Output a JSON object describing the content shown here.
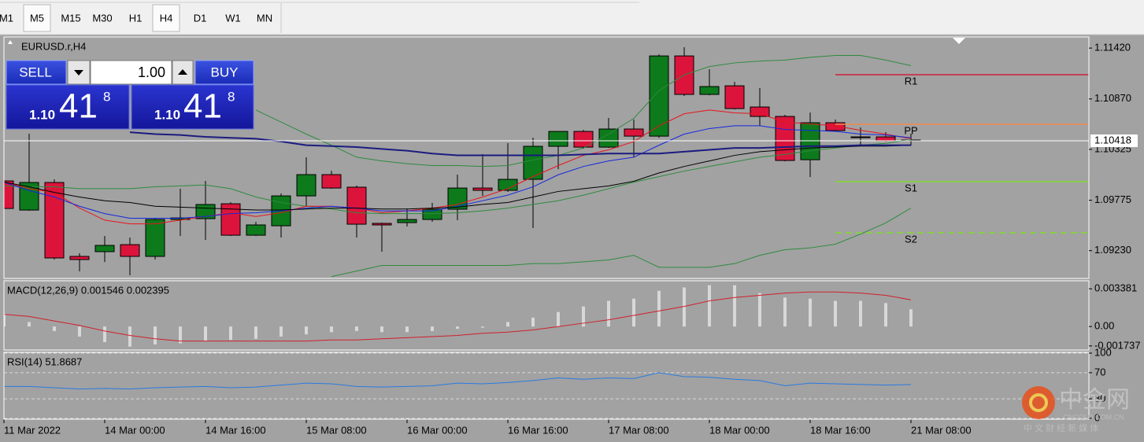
{
  "toolbar": {
    "timeframes": [
      "M1",
      "M5",
      "M15",
      "M30",
      "H1",
      "H4",
      "D1",
      "W1",
      "MN"
    ],
    "boxed": [
      1,
      5
    ]
  },
  "trade_panel": {
    "sell_label": "SELL",
    "lots": "1.00",
    "buy_label": "BUY",
    "sell_price": {
      "big": "1.10",
      "pips": "41",
      "point": "8"
    },
    "buy_price": {
      "big": "1.10",
      "pips": "41",
      "point": "8"
    }
  },
  "chart_data": [
    {
      "type": "candlestick",
      "title": "EURUSD.r,H4",
      "categories": [
        "11 Mar 2022",
        null,
        null,
        null,
        "14 Mar 00:00",
        null,
        null,
        null,
        "14 Mar 16:00",
        null,
        null,
        null,
        "15 Mar 08:00",
        null,
        null,
        null,
        "16 Mar 00:00",
        null,
        null,
        null,
        "16 Mar 16:00",
        null,
        null,
        null,
        "17 Mar 08:00",
        null,
        null,
        null,
        "18 Mar 00:00",
        null,
        null,
        null,
        "18 Mar 16:00",
        null,
        null,
        null,
        "21 Mar 08:00"
      ],
      "open": [
        1.09984,
        1.09669,
        1.09967,
        1.09168,
        1.09219,
        1.09295,
        1.09168,
        1.09567,
        1.09576,
        1.09737,
        1.09397,
        1.09499,
        1.09822,
        1.10052,
        1.09916,
        1.09525,
        1.09533,
        1.09567,
        1.09678,
        1.09907,
        1.09882,
        1.10001,
        1.10358,
        1.10519,
        1.10349,
        1.10545,
        1.10468,
        1.11335,
        1.10919,
        1.11012,
        1.10783,
        1.10681,
        1.10213,
        1.10613,
        1.1046,
        1.1046,
        1.10426
      ],
      "high": [
        1.10111,
        1.10494,
        1.10001,
        1.09202,
        1.09389,
        1.09372,
        1.09584,
        1.09899,
        1.09984,
        1.09754,
        1.09542,
        1.09848,
        1.10239,
        1.10094,
        1.09933,
        1.09533,
        1.09686,
        1.09746,
        1.10052,
        1.10273,
        1.10392,
        1.10451,
        1.10519,
        1.10536,
        1.10664,
        1.10647,
        1.11352,
        1.11429,
        1.11191,
        1.11055,
        1.10987,
        1.10698,
        1.10723,
        1.10647,
        1.10562,
        1.10511,
        1.10494
      ],
      "low": [
        1.09644,
        1.09661,
        1.09134,
        1.09006,
        1.09108,
        1.08964,
        1.09134,
        1.09389,
        1.09346,
        1.09389,
        1.09389,
        1.09372,
        1.09712,
        1.09899,
        1.09372,
        1.09219,
        1.09491,
        1.09542,
        1.09559,
        1.09822,
        1.09865,
        1.09474,
        1.10111,
        1.10332,
        1.10341,
        1.10239,
        1.10451,
        1.10902,
        1.1091,
        1.10757,
        1.10579,
        1.10196,
        1.10026,
        1.10519,
        1.10366,
        1.10409,
        1.10366
      ],
      "close": [
        1.09686,
        1.09967,
        1.09151,
        1.09134,
        1.09287,
        1.09168,
        1.09567,
        1.09584,
        1.09729,
        1.09397,
        1.09508,
        1.09822,
        1.10052,
        1.09907,
        1.09516,
        1.09508,
        1.09567,
        1.09678,
        1.09907,
        1.09882,
        1.10001,
        1.10358,
        1.10519,
        1.10349,
        1.10545,
        1.10468,
        1.11335,
        1.10919,
        1.11004,
        1.10766,
        1.10681,
        1.10205,
        1.10613,
        1.10528,
        1.10451,
        1.10417,
        1.10418
      ],
      "bull_color": "#0d7a1c",
      "bear_color": "#dc143c",
      "series": [
        {
          "color": "#2e8b3e",
          "width": 1,
          "values": [
            null,
            null,
            null,
            null,
            null,
            null,
            null,
            null,
            null,
            null,
            1.1075,
            1.1062,
            1.1049,
            1.1037,
            1.1024,
            1.102,
            1.1017,
            1.1015,
            1.1015,
            1.1014,
            1.1015,
            1.1021,
            1.1026,
            1.1034,
            1.1049,
            1.1066,
            1.1096,
            1.1113,
            1.1122,
            1.1126,
            1.1128,
            1.1129,
            1.1132,
            1.1134,
            1.1134,
            1.1129,
            1.1123
          ]
        },
        {
          "color": "#2e8b3e",
          "width": 1,
          "values": [
            1.0993,
            1.0992,
            1.0992,
            1.099,
            1.099,
            1.099,
            1.0992,
            1.0993,
            1.0994,
            1.099,
            1.0981,
            1.0975,
            1.0971,
            1.0968,
            1.0964,
            1.0963,
            1.0963,
            1.0963,
            1.0964,
            1.0966,
            1.0969,
            1.0973,
            1.0977,
            1.0983,
            1.099,
            1.0997,
            1.1003,
            1.1009,
            1.1014,
            1.1019,
            1.1024,
            1.1027,
            1.1031,
            1.1034,
            1.1037,
            1.1039,
            1.1043
          ]
        },
        {
          "color": "#2e8b3e",
          "width": 1,
          "values": [
            null,
            null,
            null,
            null,
            null,
            null,
            null,
            null,
            null,
            null,
            null,
            null,
            null,
            1.0895,
            1.0901,
            1.0907,
            1.0907,
            1.0907,
            1.0907,
            1.0907,
            1.0907,
            1.0909,
            1.0909,
            1.0911,
            1.0913,
            1.0918,
            1.0905,
            1.0905,
            1.0905,
            1.0909,
            1.0918,
            1.0924,
            1.0926,
            1.093,
            1.0941,
            1.0953,
            1.0969
          ]
        },
        {
          "color": "#e8141c",
          "width": 1,
          "values": [
            1.0997,
            1.099,
            1.0986,
            1.0969,
            1.0956,
            1.0952,
            1.0952,
            1.0956,
            1.096,
            1.0964,
            1.096,
            1.0964,
            1.0971,
            1.0971,
            1.0969,
            1.0964,
            1.0966,
            1.0969,
            1.0973,
            1.0981,
            1.099,
            1.1003,
            1.1015,
            1.1026,
            1.1032,
            1.1041,
            1.1058,
            1.1071,
            1.1075,
            1.1072,
            1.1071,
            1.1062,
            1.106,
            1.1058,
            1.1053,
            1.1049,
            1.1044
          ]
        },
        {
          "color": "#1428e0",
          "width": 1,
          "values": [
            1.0997,
            1.0988,
            1.0981,
            1.0971,
            1.0963,
            1.0958,
            1.0958,
            1.0958,
            1.096,
            1.0963,
            1.0964,
            1.0966,
            1.0969,
            1.0971,
            1.0969,
            1.0966,
            1.0966,
            1.0966,
            1.0971,
            1.0977,
            1.0983,
            1.0992,
            1.1005,
            1.1014,
            1.102,
            1.1024,
            1.1037,
            1.1049,
            1.1055,
            1.1058,
            1.1058,
            1.1054,
            1.1053,
            1.1052,
            1.1049,
            1.1048,
            1.1045
          ]
        },
        {
          "color": "#000000",
          "width": 1,
          "values": [
            1.0997,
            1.0992,
            1.0986,
            1.0981,
            1.0977,
            1.0975,
            1.0971,
            1.097,
            1.0969,
            1.0968,
            1.0967,
            1.0967,
            1.0968,
            1.0969,
            1.0969,
            1.0968,
            1.0968,
            1.0969,
            1.097,
            1.0973,
            1.0975,
            1.0981,
            1.0987,
            1.099,
            1.0993,
            1.0998,
            1.1007,
            1.1014,
            1.102,
            1.1026,
            1.103,
            1.1032,
            1.1034,
            1.1035,
            1.1036,
            1.1036,
            1.1037
          ]
        },
        {
          "color": "#1c1c80",
          "width": 2,
          "values": [
            null,
            null,
            null,
            null,
            null,
            1.1051,
            1.1049,
            1.1048,
            1.1046,
            1.1045,
            1.1044,
            1.1041,
            1.1037,
            1.1036,
            1.1035,
            1.1033,
            1.1031,
            1.1028,
            1.1026,
            1.1026,
            1.1026,
            1.1026,
            1.1026,
            1.1027,
            1.1028,
            1.1028,
            1.1028,
            1.103,
            1.1032,
            1.1034,
            1.1034,
            1.1035,
            1.1036,
            1.1036,
            1.1037,
            1.1037,
            1.1037
          ]
        }
      ],
      "levels": [
        {
          "label": "R1",
          "value": 1.11132,
          "color": "#d0203a",
          "dashed": false
        },
        {
          "label": "PP",
          "value": 1.10596,
          "color": "#f08a50",
          "dashed": false
        },
        {
          "label": "S1",
          "value": 1.09976,
          "color": "#7fdc2a",
          "dashed": false
        },
        {
          "label": "S2",
          "value": 1.09423,
          "color": "#7fdc2a",
          "dashed": true
        }
      ],
      "bid": 1.10418,
      "ylim": [
        1.0893,
        1.1154
      ],
      "yticks": [
        {
          "value": 1.1142,
          "label": "1.11420"
        },
        {
          "value": 1.1087,
          "label": "1.10870"
        },
        1.10325,
        1.09775,
        {
          "value": 1.0923,
          "label": "1.09230"
        }
      ]
    },
    {
      "type": "macd",
      "title": "MACD(12,26,9) 0.001546 0.002395",
      "values": [
        0.0012,
        0.0004,
        -0.0004,
        -0.0009,
        -0.0014,
        -0.0018,
        -0.0016,
        -0.0015,
        -0.0013,
        -0.0012,
        -0.0011,
        -0.0009,
        -0.0007,
        -0.0005,
        -0.0004,
        -0.0005,
        -0.0005,
        -0.0004,
        -0.0002,
        -0.0001,
        0.0004,
        0.0008,
        0.0013,
        0.0018,
        0.0023,
        0.0025,
        0.0032,
        0.0035,
        0.0037,
        0.0037,
        0.003,
        0.0026,
        0.0025,
        0.0023,
        0.0023,
        0.0021,
        0.001546
      ],
      "color": "#d8d8d8",
      "series": [
        {
          "color": "#d0202a",
          "width": 1,
          "values": [
            0.0011,
            0.0009,
            0.0005,
            0.0001,
            -0.0004,
            -0.0008,
            -0.0011,
            -0.0013,
            -0.0013,
            -0.0013,
            -0.0013,
            -0.0013,
            -0.0013,
            -0.0012,
            -0.0012,
            -0.0011,
            -0.001,
            -0.0009,
            -0.0008,
            -0.0006,
            -0.0005,
            -0.0003,
            0,
            0.0003,
            0.0006,
            0.001,
            0.0014,
            0.0018,
            0.0023,
            0.0026,
            0.0028,
            0.003,
            0.0031,
            0.0031,
            0.003,
            0.0028,
            0.002395
          ]
        }
      ],
      "ylim": [
        -0.0021,
        0.0041
      ],
      "yticks": [
        0.003381,
        {
          "value": 0,
          "label": "0.00"
        },
        -0.001737
      ]
    },
    {
      "type": "rsi",
      "title": "RSI(14) 51.8687",
      "series": [
        {
          "color": "#2a7be0",
          "width": 1,
          "values": [
            49,
            49,
            47,
            45,
            46,
            45,
            47,
            48,
            49,
            47,
            48,
            51,
            54,
            53,
            49,
            48,
            49,
            50,
            54,
            53,
            55,
            58,
            62,
            60,
            62,
            61,
            70,
            64,
            63,
            60,
            58,
            50,
            54,
            53,
            52,
            51,
            51.8687
          ]
        }
      ],
      "ylim": [
        0,
        100
      ],
      "yticks": [
        100,
        70,
        30,
        0
      ],
      "grid": "dashed"
    }
  ],
  "watermark": {
    "brand": "中金网",
    "site": "CNGOLD.COM.CN",
    "slogan": "中 文 财 经 新 媒 体"
  }
}
